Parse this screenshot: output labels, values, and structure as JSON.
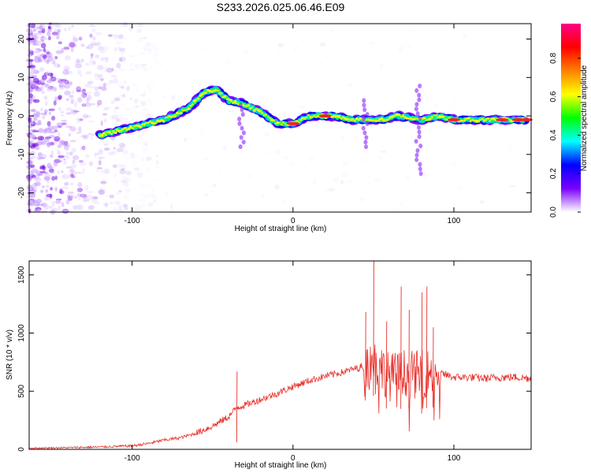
{
  "title": "S233.2026.025.06.46.E09",
  "chart_data": [
    {
      "type": "heatmap",
      "name": "spectrogram",
      "xlabel": "Height of straight line (km)",
      "ylabel": "Frequency (Hz)",
      "xlim": [
        -164,
        148
      ],
      "ylim": [
        -25,
        24
      ],
      "xticks": [
        -100,
        0,
        100
      ],
      "yticks": [
        -20,
        -10,
        0,
        10,
        20
      ],
      "colorbar": {
        "label": "Normalized spectral amplitude",
        "range": [
          0,
          0.98
        ],
        "ticks": [
          0.0,
          0.2,
          0.4,
          0.6,
          0.8
        ],
        "colors": [
          "#ffffff",
          "#7a00ff",
          "#0000ff",
          "#00ffff",
          "#00ff00",
          "#ffff00",
          "#ff8000",
          "#ff0000",
          "#ff0088"
        ]
      },
      "ridge_track": [
        {
          "x": -120,
          "freq": -5
        },
        {
          "x": -100,
          "freq": -3
        },
        {
          "x": -80,
          "freq": -1
        },
        {
          "x": -65,
          "freq": 2
        },
        {
          "x": -55,
          "freq": 6
        },
        {
          "x": -48,
          "freq": 7
        },
        {
          "x": -40,
          "freq": 4
        },
        {
          "x": -30,
          "freq": 3
        },
        {
          "x": -20,
          "freq": 1
        },
        {
          "x": -10,
          "freq": -2
        },
        {
          "x": 0,
          "freq": -2
        },
        {
          "x": 10,
          "freq": 0
        },
        {
          "x": 25,
          "freq": 0
        },
        {
          "x": 35,
          "freq": -1
        },
        {
          "x": 45,
          "freq": -1
        },
        {
          "x": 55,
          "freq": -1
        },
        {
          "x": 65,
          "freq": 0
        },
        {
          "x": 80,
          "freq": -1
        },
        {
          "x": 90,
          "freq": 0
        },
        {
          "x": 100,
          "freq": -1
        },
        {
          "x": 110,
          "freq": -1
        },
        {
          "x": 120,
          "freq": -1
        },
        {
          "x": 130,
          "freq": -1
        },
        {
          "x": 145,
          "freq": -1
        }
      ]
    },
    {
      "type": "line",
      "name": "snr",
      "xlabel": "Height of straight line (km)",
      "ylabel": "SNR (10 * v/v)",
      "xlim": [
        -164,
        148
      ],
      "ylim": [
        0,
        1620
      ],
      "xticks": [
        -100,
        0,
        100
      ],
      "yticks": [
        0,
        500,
        1000,
        1500
      ],
      "color": "#e8302a",
      "series": [
        {
          "name": "SNR",
          "x": [
            -164,
            -140,
            -120,
            -100,
            -90,
            -80,
            -70,
            -60,
            -50,
            -40,
            -35,
            -30,
            -20,
            -10,
            0,
            10,
            20,
            30,
            40,
            45,
            50,
            55,
            60,
            65,
            70,
            75,
            80,
            85,
            90,
            95,
            100,
            110,
            120,
            130,
            140,
            148
          ],
          "y": [
            10,
            15,
            20,
            30,
            50,
            80,
            100,
            140,
            200,
            280,
            360,
            380,
            430,
            480,
            540,
            590,
            630,
            660,
            700,
            720,
            760,
            700,
            620,
            640,
            660,
            640,
            650,
            660,
            660,
            640,
            620,
            620,
            610,
            620,
            620,
            610
          ]
        }
      ],
      "peaks": [
        {
          "x": -35,
          "y": 670
        },
        {
          "x": 45,
          "y": 1180
        },
        {
          "x": 50,
          "y": 1620
        },
        {
          "x": 58,
          "y": 1100
        },
        {
          "x": 67,
          "y": 1400
        },
        {
          "x": 72,
          "y": 1200
        },
        {
          "x": 80,
          "y": 1350
        },
        {
          "x": 83,
          "y": 1400
        },
        {
          "x": 87,
          "y": 1050
        }
      ]
    }
  ]
}
